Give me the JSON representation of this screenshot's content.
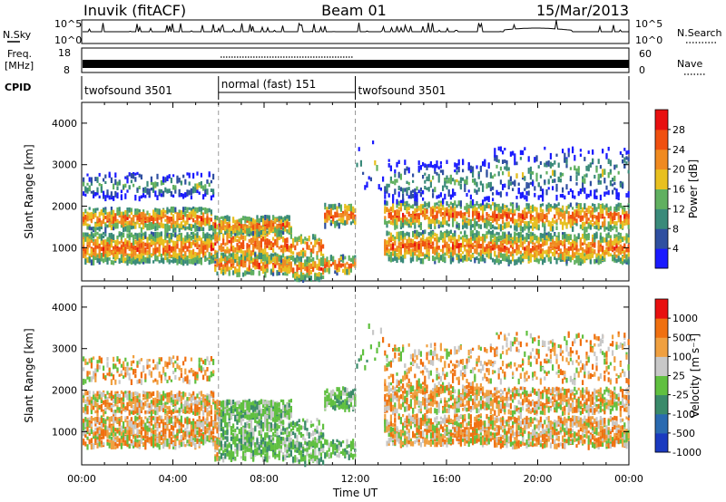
{
  "header": {
    "title": "Inuvik (fitACF)",
    "beam": "Beam 01",
    "date": "15/Mar/2013"
  },
  "top_panels": {
    "nsky_label": "N.Sky",
    "nsearch_label": "N.Search",
    "freq_label_line1": "Freq.",
    "freq_label_line2": "[MHz]",
    "nave_label": "Nave",
    "cpid_label": "CPID",
    "nsky_ticks": [
      "10^5",
      "10^0"
    ],
    "nsearch_ticks": [
      "10^5",
      "10^0"
    ],
    "freq_ticks": [
      "18",
      "8"
    ],
    "nave_ticks": [
      "60",
      "0"
    ]
  },
  "cpid_segments": [
    {
      "label": "twofsound 3501",
      "start_hour": 0,
      "end_hour": 6
    },
    {
      "label": "normal (fast) 151",
      "start_hour": 6,
      "end_hour": 12
    },
    {
      "label": "twofsound 3501",
      "start_hour": 12,
      "end_hour": 24
    }
  ],
  "colors": {
    "power_scale": [
      "#1a1aff",
      "#2f4fa0",
      "#3a8a7a",
      "#60b060",
      "#e8c020",
      "#f08a20",
      "#f05010",
      "#e81010"
    ],
    "velocity_scale": [
      "#1a3ac0",
      "#2a6ab0",
      "#3a8a6a",
      "#60c040",
      "#c8c8c8",
      "#f0a040",
      "#f07010",
      "#e81010"
    ]
  },
  "chart_data": [
    {
      "type": "heatmap",
      "name": "power",
      "ylabel": "Slant Range [km]",
      "colorbar_label": "Power [dB]",
      "colorbar_ticks": [
        "4",
        "8",
        "12",
        "16",
        "20",
        "24",
        "28"
      ],
      "colorbar_range": [
        0,
        32
      ],
      "x_range_hours": [
        0,
        24
      ],
      "ylim": [
        200,
        4500
      ],
      "yticks": [
        "1000",
        "2000",
        "3000",
        "4000"
      ],
      "ytick_values": [
        1000,
        2000,
        3000,
        4000
      ]
    },
    {
      "type": "heatmap",
      "name": "velocity",
      "xlabel": "Time UT",
      "xticks": [
        "00:00",
        "04:00",
        "08:00",
        "12:00",
        "16:00",
        "20:00",
        "00:00"
      ],
      "xtick_hours": [
        0,
        4,
        8,
        12,
        16,
        20,
        24
      ],
      "ylabel": "Slant Range [km]",
      "colorbar_label": "Velocity [m s⁻¹]",
      "colorbar_ticks": [
        "1000",
        "500",
        "100",
        "25",
        "-25",
        "-100",
        "-500",
        "-1000"
      ],
      "x_range_hours": [
        0,
        24
      ],
      "ylim": [
        200,
        4500
      ],
      "yticks": [
        "1000",
        "2000",
        "3000",
        "4000"
      ],
      "ytick_values": [
        1000,
        2000,
        3000,
        4000
      ]
    }
  ]
}
